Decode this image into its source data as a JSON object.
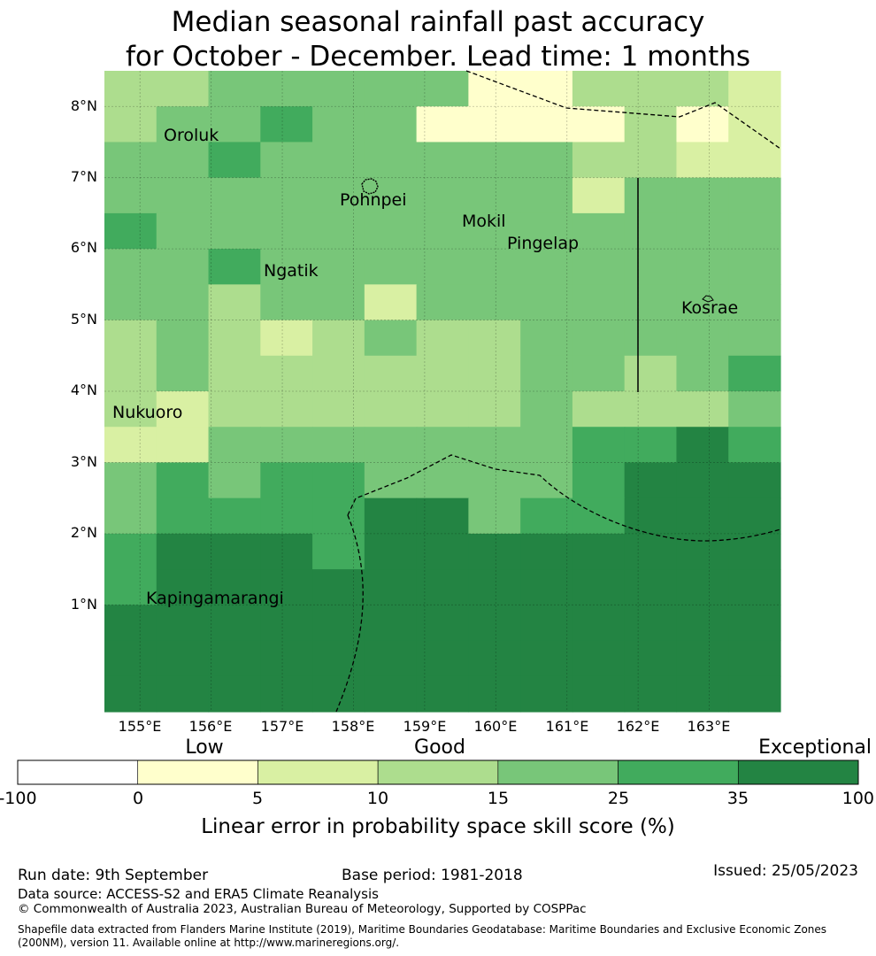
{
  "title_line1": "Median seasonal rainfall past accuracy",
  "title_line2": "for October - December. Lead time: 1 months",
  "map": {
    "lat_ticks": [
      "8°N",
      "7°N",
      "6°N",
      "5°N",
      "4°N",
      "3°N",
      "2°N",
      "1°N"
    ],
    "lon_ticks": [
      "155°E",
      "156°E",
      "157°E",
      "158°E",
      "159°E",
      "160°E",
      "161°E",
      "162°E",
      "163°E"
    ],
    "places": {
      "oroluk": "Oroluk",
      "pohnpei": "Pohnpei",
      "mokil": "Mokil",
      "pingelap": "Pingelap",
      "ngatik": "Ngatik",
      "kosrae": "Kosrae",
      "nukuoro": "Nukuoro",
      "kapingamarangi": "Kapingamarangi"
    },
    "skill_grid_rows_north_to_south": [
      "3344444113332",
      "3445441111312",
      "4454444443322",
      "4444444442444",
      "5444444444444",
      "4454444444444",
      "4434424444444",
      "3432343344444",
      "3433333344345",
      "3233333343334",
      "2244444445565",
      "4545544445666",
      "4555566455666",
      "5666566666666",
      "5666666666666",
      "6666666666666",
      "6666666666666",
      "6666666666666"
    ],
    "grid_class_colors": [
      "#ffffff",
      "#ffffcc",
      "#d9f0a3",
      "#addd8e",
      "#78c679",
      "#41ab5d",
      "#238443"
    ]
  },
  "colorbar": {
    "category_labels": {
      "low": "Low",
      "good": "Good",
      "exceptional": "Exceptional"
    },
    "ticks": [
      "-100",
      "0",
      "5",
      "10",
      "15",
      "25",
      "35",
      "100"
    ],
    "colors": [
      "#ffffff",
      "#ffffcc",
      "#d9f0a3",
      "#addd8e",
      "#78c679",
      "#41ab5d",
      "#238443"
    ],
    "label": "Linear error in probability space skill score (%)"
  },
  "footer": {
    "run_date": "Run date: 9th September",
    "base_period": "Base period: 1981-2018",
    "issued": "Issued: 25/05/2023",
    "data_source": "Data source: ACCESS-S2 and ERA5 Climate Reanalysis",
    "copyright": "© Commonwealth of Australia 2023, Australian Bureau of Meteorology, Supported by COSPPac",
    "shapefile": "Shapefile data extracted from Flanders Marine Institute (2019), Maritime Boundaries Geodatabase: Maritime Boundaries and Exclusive Economic Zones (200NM), version 11. Available online at http://www.marineregions.org/."
  }
}
